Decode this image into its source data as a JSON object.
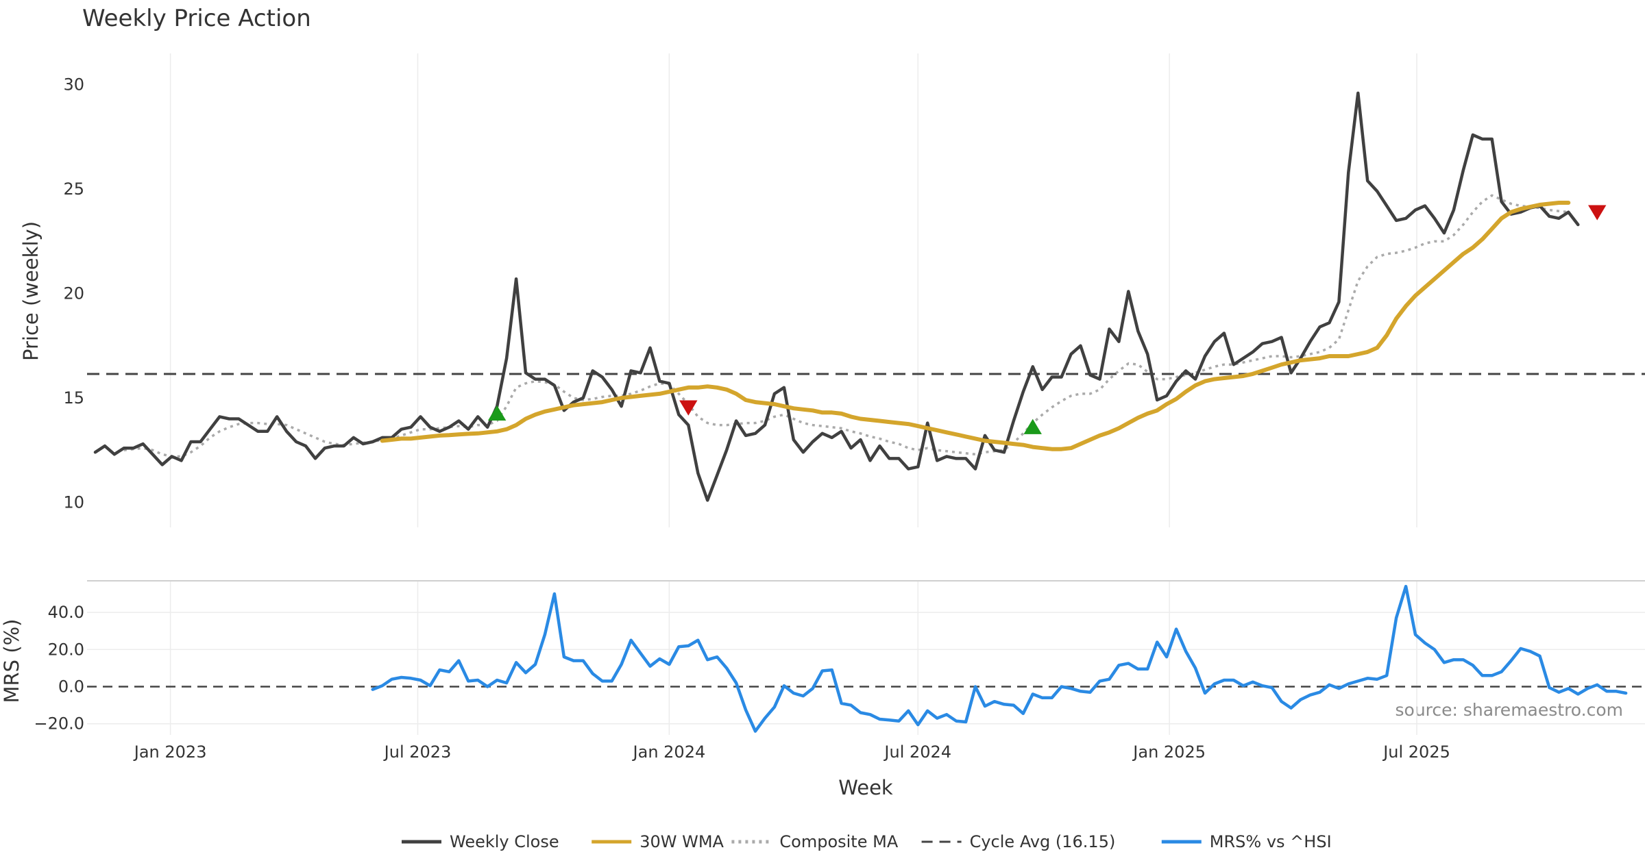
{
  "chart_data": [
    {
      "type": "line",
      "title": "Weekly Price Action",
      "ylabel": "Price (weekly)",
      "ylim": [
        8.8,
        31.5
      ],
      "yticks": [
        10,
        15,
        20,
        25,
        30
      ],
      "x_start": "2022-11-07",
      "x_step_days": 7,
      "x_range": [
        "2022-11-01",
        "2025-12-15"
      ],
      "x_ticks": [
        {
          "label": "Jan 2023",
          "date": "2023-01-01"
        },
        {
          "label": "Jul 2023",
          "date": "2023-07-01"
        },
        {
          "label": "Jan 2024",
          "date": "2024-01-01"
        },
        {
          "label": "Jul 2024",
          "date": "2024-07-01"
        },
        {
          "label": "Jan 2025",
          "date": "2025-01-01"
        },
        {
          "label": "Jul 2025",
          "date": "2025-07-01"
        }
      ],
      "series": [
        {
          "name": "Weekly Close",
          "color": "#404040",
          "values": [
            12.4,
            12.7,
            12.3,
            12.6,
            12.6,
            12.8,
            12.3,
            11.8,
            12.2,
            12.0,
            12.9,
            12.9,
            13.5,
            14.1,
            14.0,
            14.0,
            13.7,
            13.4,
            13.4,
            14.1,
            13.4,
            12.9,
            12.7,
            12.1,
            12.6,
            12.7,
            12.7,
            13.1,
            12.8,
            12.9,
            13.1,
            13.1,
            13.5,
            13.6,
            14.1,
            13.6,
            13.4,
            13.6,
            13.9,
            13.5,
            14.1,
            13.6,
            14.6,
            16.9,
            20.7,
            16.2,
            15.9,
            15.9,
            15.6,
            14.4,
            14.8,
            15.0,
            16.3,
            16.0,
            15.4,
            14.6,
            16.3,
            16.2,
            17.4,
            15.8,
            15.7,
            14.2,
            13.7,
            11.4,
            10.1,
            11.3,
            12.5,
            13.9,
            13.2,
            13.3,
            13.7,
            15.2,
            15.5,
            13.0,
            12.4,
            12.9,
            13.3,
            13.1,
            13.4,
            12.6,
            13.0,
            12.0,
            12.7,
            12.1,
            12.1,
            11.6,
            11.7,
            13.8,
            12.0,
            12.2,
            12.1,
            12.1,
            11.6,
            13.2,
            12.5,
            12.4,
            13.9,
            15.3,
            16.5,
            15.4,
            16.0,
            16.0,
            17.1,
            17.5,
            16.1,
            15.9,
            18.3,
            17.7,
            20.1,
            18.2,
            17.1,
            14.9,
            15.1,
            15.8,
            16.3,
            15.9,
            17.0,
            17.7,
            18.1,
            16.6,
            16.9,
            17.2,
            17.6,
            17.7,
            17.9,
            16.2,
            16.9,
            17.7,
            18.4,
            18.6,
            19.6,
            25.8,
            29.6,
            25.4,
            24.9,
            24.2,
            23.5,
            23.6,
            24.0,
            24.2,
            23.6,
            22.9,
            24.0,
            25.9,
            27.6,
            27.4,
            27.4,
            24.4,
            23.8,
            23.9,
            24.1,
            24.2,
            23.7,
            23.6,
            23.9,
            23.3
          ]
        },
        {
          "name": "30W WMA",
          "color": "#d4a52c",
          "start_index": 30,
          "values": [
            12.95,
            13.0,
            13.05,
            13.05,
            13.1,
            13.15,
            13.2,
            13.22,
            13.25,
            13.28,
            13.3,
            13.35,
            13.4,
            13.5,
            13.7,
            14.0,
            14.2,
            14.35,
            14.45,
            14.55,
            14.65,
            14.7,
            14.75,
            14.8,
            14.9,
            15.0,
            15.05,
            15.1,
            15.15,
            15.2,
            15.3,
            15.4,
            15.5,
            15.5,
            15.55,
            15.5,
            15.4,
            15.2,
            14.9,
            14.8,
            14.75,
            14.7,
            14.6,
            14.5,
            14.45,
            14.4,
            14.3,
            14.3,
            14.25,
            14.1,
            14.0,
            13.95,
            13.9,
            13.85,
            13.8,
            13.75,
            13.65,
            13.55,
            13.45,
            13.35,
            13.25,
            13.15,
            13.05,
            12.95,
            12.9,
            12.85,
            12.8,
            12.75,
            12.65,
            12.6,
            12.55,
            12.55,
            12.6,
            12.8,
            13.0,
            13.2,
            13.35,
            13.55,
            13.8,
            14.05,
            14.25,
            14.4,
            14.7,
            14.95,
            15.3,
            15.6,
            15.8,
            15.9,
            15.95,
            16.0,
            16.05,
            16.15,
            16.3,
            16.45,
            16.6,
            16.7,
            16.8,
            16.85,
            16.9,
            17.0,
            17.0,
            17.0,
            17.1,
            17.2,
            17.4,
            18.0,
            18.8,
            19.4,
            19.9,
            20.3,
            20.7,
            21.1,
            21.5,
            21.9,
            22.2,
            22.6,
            23.1,
            23.6,
            23.9,
            24.05,
            24.15,
            24.25,
            24.3,
            24.35,
            24.35
          ]
        },
        {
          "name": "Composite MA",
          "color": "#aaaaaa",
          "values": [
            null,
            null,
            null,
            12.5,
            12.55,
            12.6,
            12.5,
            12.3,
            12.2,
            12.2,
            12.4,
            12.7,
            13.1,
            13.4,
            13.6,
            13.75,
            13.8,
            13.8,
            13.75,
            13.75,
            13.7,
            13.5,
            13.3,
            13.1,
            12.9,
            12.8,
            12.75,
            12.8,
            12.85,
            12.9,
            13.0,
            13.05,
            13.2,
            13.35,
            13.5,
            13.5,
            13.55,
            13.6,
            13.65,
            13.6,
            13.7,
            13.7,
            13.9,
            14.6,
            15.5,
            15.7,
            15.8,
            15.75,
            15.65,
            15.3,
            15.0,
            14.9,
            14.95,
            15.05,
            15.1,
            15.1,
            15.2,
            15.35,
            15.55,
            15.7,
            15.65,
            15.2,
            14.7,
            14.1,
            13.8,
            13.7,
            13.7,
            13.75,
            13.8,
            13.8,
            13.9,
            14.1,
            14.2,
            14.0,
            13.8,
            13.7,
            13.65,
            13.6,
            13.55,
            13.4,
            13.3,
            13.15,
            13.05,
            12.9,
            12.8,
            12.6,
            12.5,
            12.6,
            12.5,
            12.45,
            12.4,
            12.35,
            12.3,
            12.4,
            12.45,
            12.5,
            12.85,
            13.3,
            13.8,
            14.2,
            14.55,
            14.85,
            15.1,
            15.2,
            15.2,
            15.4,
            15.9,
            16.3,
            16.65,
            16.6,
            16.25,
            15.9,
            15.9,
            16.0,
            16.1,
            16.2,
            16.35,
            16.5,
            16.6,
            16.6,
            16.7,
            16.8,
            16.9,
            17.0,
            17.0,
            16.95,
            17.0,
            17.1,
            17.2,
            17.4,
            17.8,
            19.2,
            20.6,
            21.3,
            21.75,
            21.9,
            21.95,
            22.05,
            22.2,
            22.4,
            22.5,
            22.5,
            22.8,
            23.3,
            23.9,
            24.4,
            24.7,
            24.5,
            24.3,
            24.2,
            24.15,
            24.1,
            24.0,
            23.95,
            23.9
          ]
        },
        {
          "name": "Cycle Avg (16.15)",
          "color": "#444444",
          "value": 16.15
        }
      ],
      "markers": [
        {
          "type": "buy",
          "shape": "up-triangle",
          "color": "#1a9a1a",
          "index": 42,
          "value": 14.25
        },
        {
          "type": "sell",
          "shape": "down-triangle",
          "color": "#cc1111",
          "index": 62,
          "value": 14.55
        },
        {
          "type": "buy",
          "shape": "up-triangle",
          "color": "#1a9a1a",
          "index": 98,
          "value": 13.6
        },
        {
          "type": "sell",
          "shape": "down-triangle",
          "color": "#cc1111",
          "index": 157,
          "value": 23.9
        }
      ]
    },
    {
      "type": "line",
      "title": "",
      "ylabel": "MRS (%)",
      "xlabel": "Week",
      "ylim": [
        -26,
        57
      ],
      "yticks": [
        -20,
        0,
        20,
        40
      ],
      "ytick_labels": [
        "−20.0",
        "0.0",
        "20.0",
        "40.0"
      ],
      "zero_line": 0,
      "series": [
        {
          "name": "MRS% vs ^HSI",
          "color": "#2a8ae4",
          "start_index": 29,
          "values": [
            -1.5,
            0.5,
            4.0,
            5.0,
            4.5,
            3.5,
            0.5,
            9.0,
            8.0,
            14.0,
            3.0,
            3.5,
            0.0,
            3.5,
            2.0,
            13.0,
            7.5,
            12.0,
            28.0,
            50.0,
            16.0,
            14.0,
            14.0,
            7.0,
            3.0,
            3.0,
            12.0,
            25.0,
            18.0,
            11.0,
            15.0,
            12.0,
            21.5,
            22.0,
            25.0,
            14.5,
            16.0,
            10.0,
            2.0,
            -12.5,
            -24.0,
            -17.0,
            -11.0,
            0.5,
            -3.5,
            -5.0,
            -1.0,
            8.5,
            9.0,
            -9.0,
            -10.0,
            -14.0,
            -15.0,
            -17.5,
            -18.0,
            -18.5,
            -13.0,
            -20.5,
            -13.0,
            -17.0,
            -15.0,
            -18.5,
            -19.0,
            0.0,
            -10.5,
            -8.0,
            -9.5,
            -10.0,
            -14.5,
            -4.0,
            -6.0,
            -6.0,
            0.0,
            -1.0,
            -2.5,
            -3.0,
            3.0,
            4.0,
            11.5,
            12.5,
            9.5,
            9.5,
            24.0,
            16.0,
            31.0,
            19.0,
            10.0,
            -3.5,
            1.5,
            3.5,
            3.5,
            0.5,
            2.5,
            0.5,
            -0.5,
            -8.0,
            -11.5,
            -7.0,
            -4.5,
            -3.0,
            1.0,
            -1.0,
            1.5,
            3.0,
            4.5,
            4.0,
            6.0,
            37.0,
            54.0,
            28.0,
            23.5,
            20.0,
            13.0,
            14.5,
            14.5,
            11.5,
            6.0,
            6.0,
            8.0,
            14.0,
            20.5,
            19.0,
            16.5,
            -0.5,
            -3.0,
            -1.0,
            -4.0,
            -1.0,
            1.0,
            -2.5,
            -2.5,
            -3.5
          ]
        }
      ]
    }
  ],
  "source_text": "source: sharemaestro.com",
  "legend": [
    {
      "label": "Weekly Close",
      "style": "solid",
      "color": "#404040"
    },
    {
      "label": "30W WMA",
      "style": "solid",
      "color": "#d4a52c"
    },
    {
      "label": "Composite MA",
      "style": "dotted",
      "color": "#aaaaaa"
    },
    {
      "label": "Cycle Avg (16.15)",
      "style": "dashed",
      "color": "#444444"
    },
    {
      "label": "MRS% vs ^HSI",
      "style": "solid",
      "color": "#2a8ae4"
    }
  ]
}
